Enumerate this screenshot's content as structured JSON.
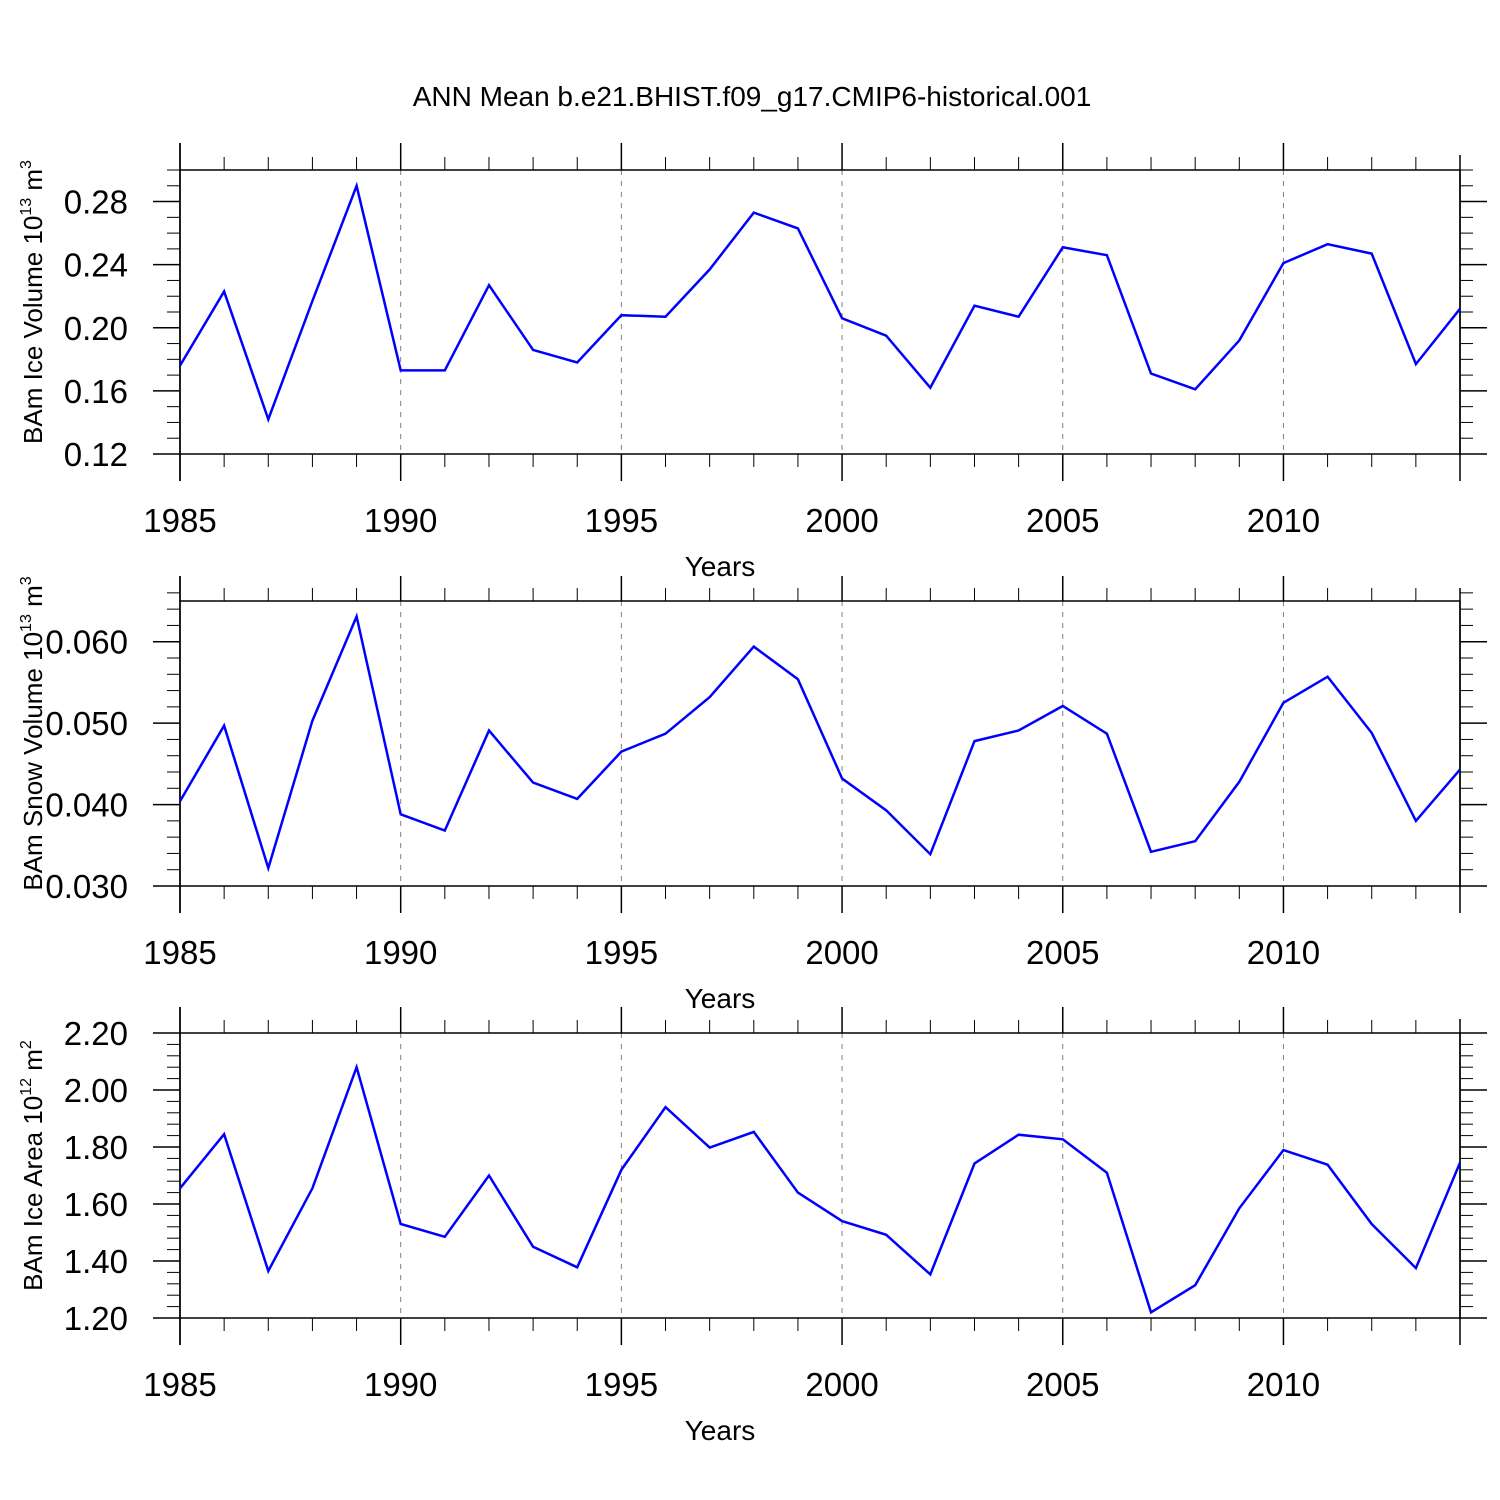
{
  "title": "ANN Mean b.e21.BHIST.f09_g17.CMIP6-historical.001",
  "colors": {
    "line": "#0000ff",
    "axis": "#000000",
    "grid": "#808080"
  },
  "chart_data": [
    {
      "type": "line",
      "ylabel_main": "BAm Ice Volume 10",
      "ylabel_exp": "13",
      "ylabel_unit": " m",
      "ylabel_unit_exp": "3",
      "xlabel": "Years",
      "xlim": [
        1985,
        2014
      ],
      "ylim": [
        0.12,
        0.3
      ],
      "yticks": [
        0.12,
        0.16,
        0.2,
        0.24,
        0.28
      ],
      "ytick_labels": [
        "0.12",
        "0.16",
        "0.20",
        "0.24",
        "0.28"
      ],
      "yminor_step": 0.01,
      "xticks": [
        1985,
        1990,
        1995,
        2000,
        2005,
        2010
      ],
      "xtick_labels": [
        "1985",
        "1990",
        "1995",
        "2000",
        "2005",
        "2010"
      ],
      "grid_x": [
        1990,
        1995,
        2000,
        2005,
        2010
      ],
      "x": [
        1985,
        1986,
        1987,
        1988,
        1989,
        1990,
        1991,
        1992,
        1993,
        1994,
        1995,
        1996,
        1997,
        1998,
        1999,
        2000,
        2001,
        2002,
        2003,
        2004,
        2005,
        2006,
        2007,
        2008,
        2009,
        2010,
        2011,
        2012,
        2013,
        2014
      ],
      "values": [
        0.176,
        0.223,
        0.142,
        0.217,
        0.29,
        0.173,
        0.173,
        0.227,
        0.186,
        0.178,
        0.208,
        0.207,
        0.237,
        0.273,
        0.263,
        0.206,
        0.195,
        0.162,
        0.214,
        0.207,
        0.251,
        0.246,
        0.171,
        0.161,
        0.192,
        0.241,
        0.253,
        0.247,
        0.177,
        0.212
      ]
    },
    {
      "type": "line",
      "ylabel_main": "BAm Snow Volume 10",
      "ylabel_exp": "13",
      "ylabel_unit": " m",
      "ylabel_unit_exp": "3",
      "xlabel": "Years",
      "xlim": [
        1985,
        2014
      ],
      "ylim": [
        0.03,
        0.065
      ],
      "yticks": [
        0.03,
        0.04,
        0.05,
        0.06
      ],
      "ytick_labels": [
        "0.030",
        "0.040",
        "0.050",
        "0.060"
      ],
      "yminor_step": 0.002,
      "xticks": [
        1985,
        1990,
        1995,
        2000,
        2005,
        2010
      ],
      "xtick_labels": [
        "1985",
        "1990",
        "1995",
        "2000",
        "2005",
        "2010"
      ],
      "grid_x": [
        1990,
        1995,
        2000,
        2005,
        2010
      ],
      "x": [
        1985,
        1986,
        1987,
        1988,
        1989,
        1990,
        1991,
        1992,
        1993,
        1994,
        1995,
        1996,
        1997,
        1998,
        1999,
        2000,
        2001,
        2002,
        2003,
        2004,
        2005,
        2006,
        2007,
        2008,
        2009,
        2010,
        2011,
        2012,
        2013,
        2014
      ],
      "values": [
        0.0404,
        0.0497,
        0.0322,
        0.0503,
        0.0631,
        0.0388,
        0.0368,
        0.0491,
        0.0427,
        0.0407,
        0.0465,
        0.0487,
        0.0532,
        0.0594,
        0.0554,
        0.0432,
        0.0393,
        0.0339,
        0.0478,
        0.0491,
        0.0521,
        0.0487,
        0.0342,
        0.0355,
        0.0428,
        0.0525,
        0.0557,
        0.0488,
        0.038,
        0.0443
      ]
    },
    {
      "type": "line",
      "ylabel_main": "BAm Ice Area 10",
      "ylabel_exp": "12",
      "ylabel_unit": " m",
      "ylabel_unit_exp": "2",
      "xlabel": "Years",
      "xlim": [
        1985,
        2014
      ],
      "ylim": [
        1.2,
        2.2
      ],
      "yticks": [
        1.2,
        1.4,
        1.6,
        1.8,
        2.0,
        2.2
      ],
      "ytick_labels": [
        "1.20",
        "1.40",
        "1.60",
        "1.80",
        "2.00",
        "2.20"
      ],
      "yminor_step": 0.04,
      "xticks": [
        1985,
        1990,
        1995,
        2000,
        2005,
        2010
      ],
      "xtick_labels": [
        "1985",
        "1990",
        "1995",
        "2000",
        "2005",
        "2010"
      ],
      "grid_x": [
        1990,
        1995,
        2000,
        2005,
        2010
      ],
      "x": [
        1985,
        1986,
        1987,
        1988,
        1989,
        1990,
        1991,
        1992,
        1993,
        1994,
        1995,
        1996,
        1997,
        1998,
        1999,
        2000,
        2001,
        2002,
        2003,
        2004,
        2005,
        2006,
        2007,
        2008,
        2009,
        2010,
        2011,
        2012,
        2013,
        2014
      ],
      "values": [
        1.655,
        1.845,
        1.365,
        1.655,
        2.08,
        1.53,
        1.485,
        1.7,
        1.45,
        1.378,
        1.72,
        1.94,
        1.798,
        1.853,
        1.64,
        1.54,
        1.492,
        1.353,
        1.742,
        1.843,
        1.827,
        1.71,
        1.22,
        1.315,
        1.585,
        1.789,
        1.738,
        1.53,
        1.375,
        1.745
      ]
    }
  ]
}
